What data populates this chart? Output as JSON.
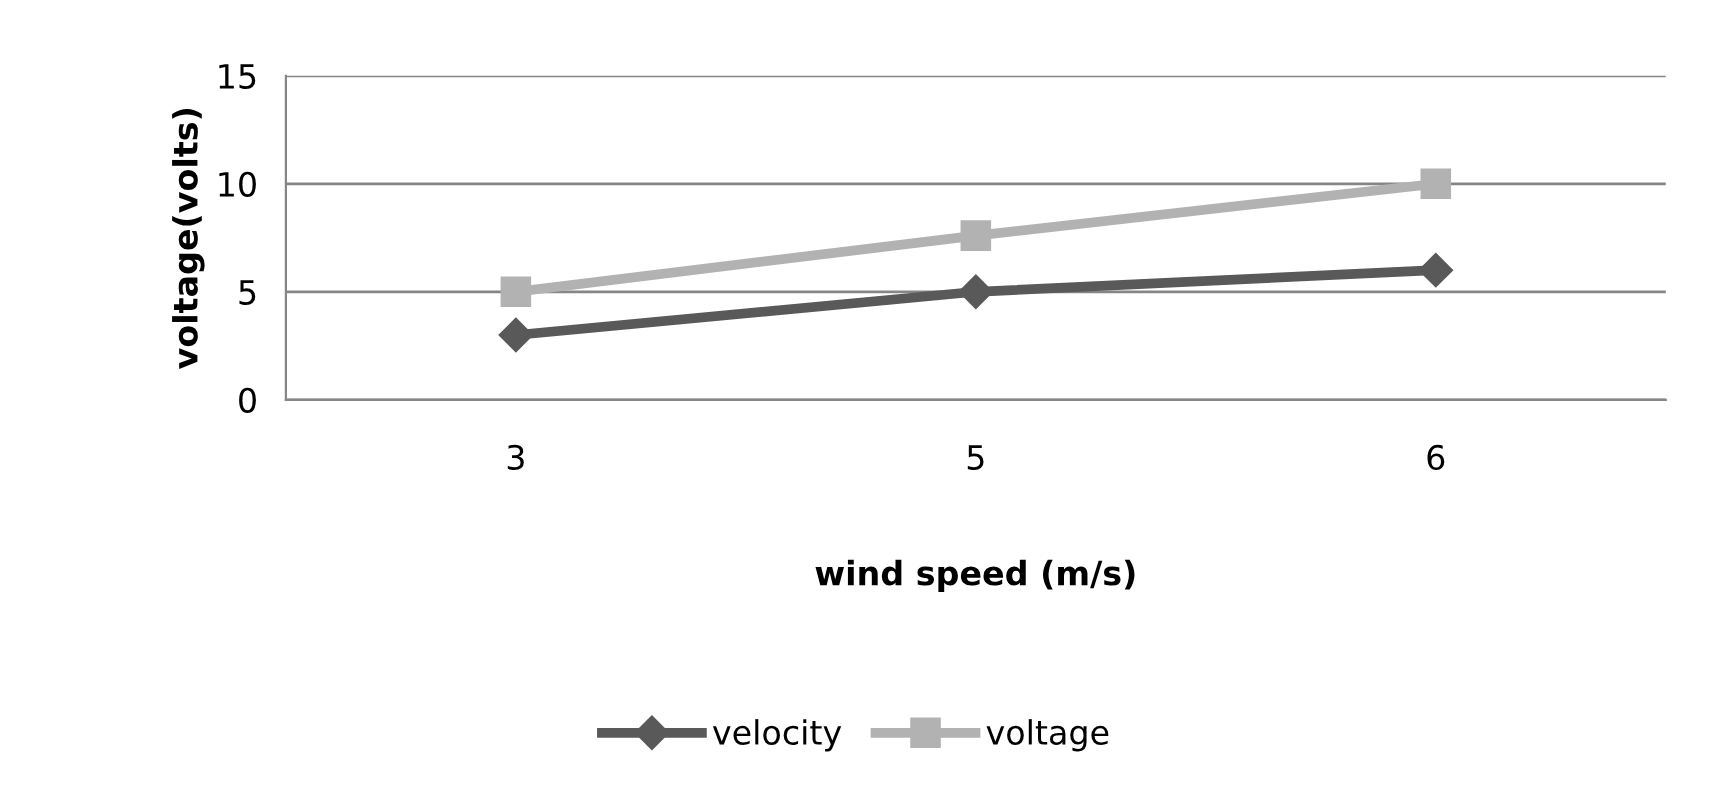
{
  "chart_data": {
    "type": "line",
    "xlabel": "wind speed (m/s)",
    "ylabel": "voltage(volts)",
    "categories": [
      "3",
      "5",
      "6"
    ],
    "series": [
      {
        "name": "velocity",
        "color": "#595959",
        "values": [
          3,
          5,
          6
        ],
        "marker": "diamond"
      },
      {
        "name": "voltage",
        "color": "#b2b2b2",
        "values": [
          5,
          7.6,
          10
        ],
        "marker": "square"
      }
    ],
    "ylim": [
      0,
      15
    ],
    "yticks": [
      0,
      5,
      10,
      15
    ],
    "grid": "y",
    "legend": "bottom",
    "line_style": "solid"
  }
}
